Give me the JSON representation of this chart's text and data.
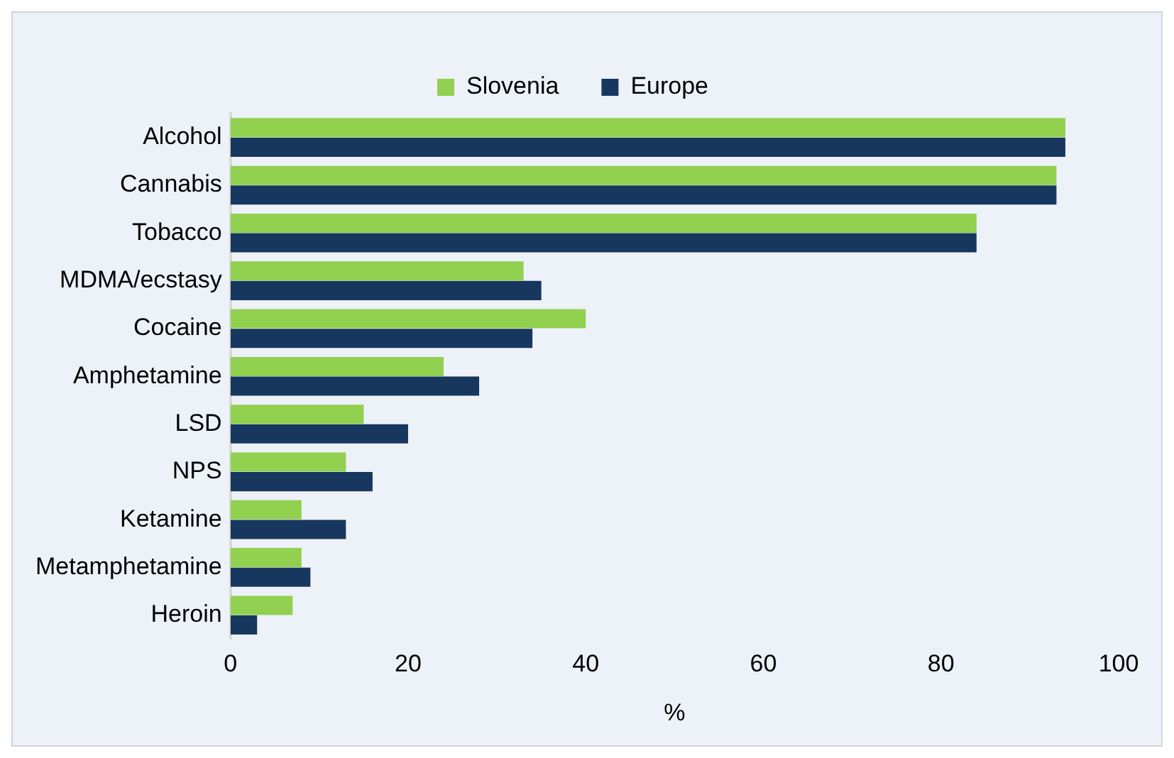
{
  "chart_data": {
    "type": "bar",
    "orientation": "horizontal",
    "xlabel": "%",
    "categories": [
      "Alcohol",
      "Cannabis",
      "Tobacco",
      "MDMA/ecstasy",
      "Cocaine",
      "Amphetamine",
      "LSD",
      "NPS",
      "Ketamine",
      "Metamphetamine",
      "Heroin"
    ],
    "series": [
      {
        "name": "Slovenia",
        "color": "#92d050",
        "values": [
          94,
          93,
          84,
          33,
          40,
          24,
          15,
          13,
          8,
          8,
          7
        ]
      },
      {
        "name": "Europe",
        "color": "#17375e",
        "values": [
          94,
          93,
          84,
          35,
          34,
          28,
          20,
          16,
          13,
          9,
          3
        ]
      }
    ],
    "xlim": [
      0,
      100
    ],
    "xticks": [
      0,
      20,
      40,
      60,
      80,
      100
    ],
    "grid": false,
    "legend": "top"
  }
}
